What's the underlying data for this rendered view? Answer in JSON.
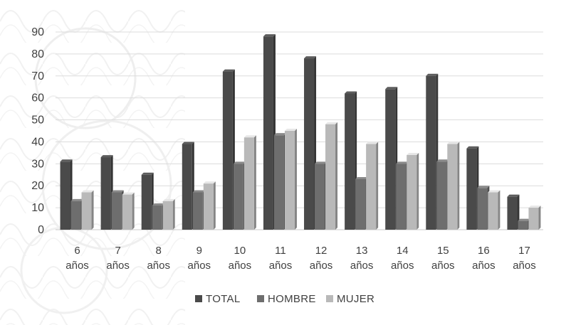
{
  "chart_data": {
    "type": "bar",
    "categories": [
      [
        "6",
        "años"
      ],
      [
        "7",
        "años"
      ],
      [
        "8",
        "años"
      ],
      [
        "9",
        "años"
      ],
      [
        "10",
        "años"
      ],
      [
        "11",
        "años"
      ],
      [
        "12",
        "años"
      ],
      [
        "13",
        "años"
      ],
      [
        "14",
        "años"
      ],
      [
        "15",
        "años"
      ],
      [
        "16",
        "años"
      ],
      [
        "17",
        "años"
      ]
    ],
    "series": [
      {
        "name": "TOTAL",
        "color": "#4a4a4a",
        "values": [
          31,
          33,
          25,
          39,
          72,
          88,
          78,
          62,
          64,
          70,
          37,
          15
        ]
      },
      {
        "name": "HOMBRE",
        "color": "#6e6e6e",
        "values": [
          13,
          17,
          11,
          17,
          30,
          43,
          30,
          23,
          30,
          31,
          19,
          4
        ]
      },
      {
        "name": "MUJER",
        "color": "#b9b9b9",
        "values": [
          17,
          16,
          13,
          21,
          42,
          45,
          48,
          39,
          34,
          39,
          17,
          10
        ]
      }
    ],
    "y_ticks": [
      "0",
      "10",
      "20",
      "30",
      "40",
      "50",
      "60",
      "70",
      "80",
      "90"
    ],
    "ylim": [
      0,
      90
    ],
    "grid": true,
    "legend_position": "bottom",
    "title": "",
    "xlabel": "",
    "ylabel": ""
  }
}
